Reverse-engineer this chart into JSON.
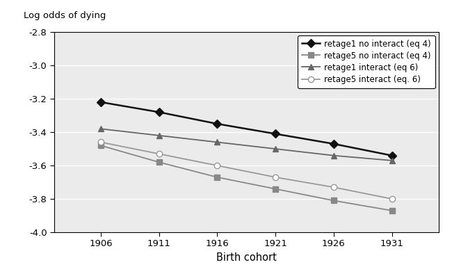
{
  "x": [
    1906,
    1911,
    1916,
    1921,
    1926,
    1931
  ],
  "series": [
    {
      "label": "retage1 no interact (eq 4)",
      "values": [
        -3.22,
        -3.28,
        -3.35,
        -3.41,
        -3.47,
        -3.54
      ],
      "color": "#111111",
      "marker": "D",
      "markersize": 6,
      "linewidth": 1.8,
      "markerfacecolor": "#111111",
      "markeredgecolor": "#111111"
    },
    {
      "label": "retage5 no interact (eq 4)",
      "values": [
        -3.48,
        -3.58,
        -3.67,
        -3.74,
        -3.81,
        -3.87
      ],
      "color": "#888888",
      "marker": "s",
      "markersize": 6,
      "linewidth": 1.3,
      "markerfacecolor": "#888888",
      "markeredgecolor": "#888888"
    },
    {
      "label": "retage1 interact (eq 6)",
      "values": [
        -3.38,
        -3.42,
        -3.46,
        -3.5,
        -3.54,
        -3.57
      ],
      "color": "#666666",
      "marker": "^",
      "markersize": 6,
      "linewidth": 1.3,
      "markerfacecolor": "#666666",
      "markeredgecolor": "#666666"
    },
    {
      "label": "retage5 interact (eq. 6)",
      "values": [
        -3.46,
        -3.53,
        -3.6,
        -3.67,
        -3.73,
        -3.8
      ],
      "color": "#999999",
      "marker": "o",
      "markersize": 6,
      "linewidth": 1.3,
      "markerfacecolor": "#ffffff",
      "markeredgecolor": "#999999"
    }
  ],
  "xlabel": "Birth cohort",
  "ylabel": "Log odds of dying",
  "ylim": [
    -4.0,
    -2.8
  ],
  "yticks": [
    -4.0,
    -3.8,
    -3.6,
    -3.4,
    -3.2,
    -3.0,
    -2.8
  ],
  "ytick_labels": [
    "-4.0",
    "-3.8",
    "-3.6",
    "-3.4",
    "-3.2",
    "-3.0",
    "-2.8"
  ],
  "xlim": [
    1902,
    1935
  ],
  "xticks": [
    1906,
    1911,
    1916,
    1921,
    1926,
    1931
  ],
  "bg_color": "#e8e8e8",
  "plot_bg_color": "#ebebeb",
  "grid_color": "#ffffff"
}
